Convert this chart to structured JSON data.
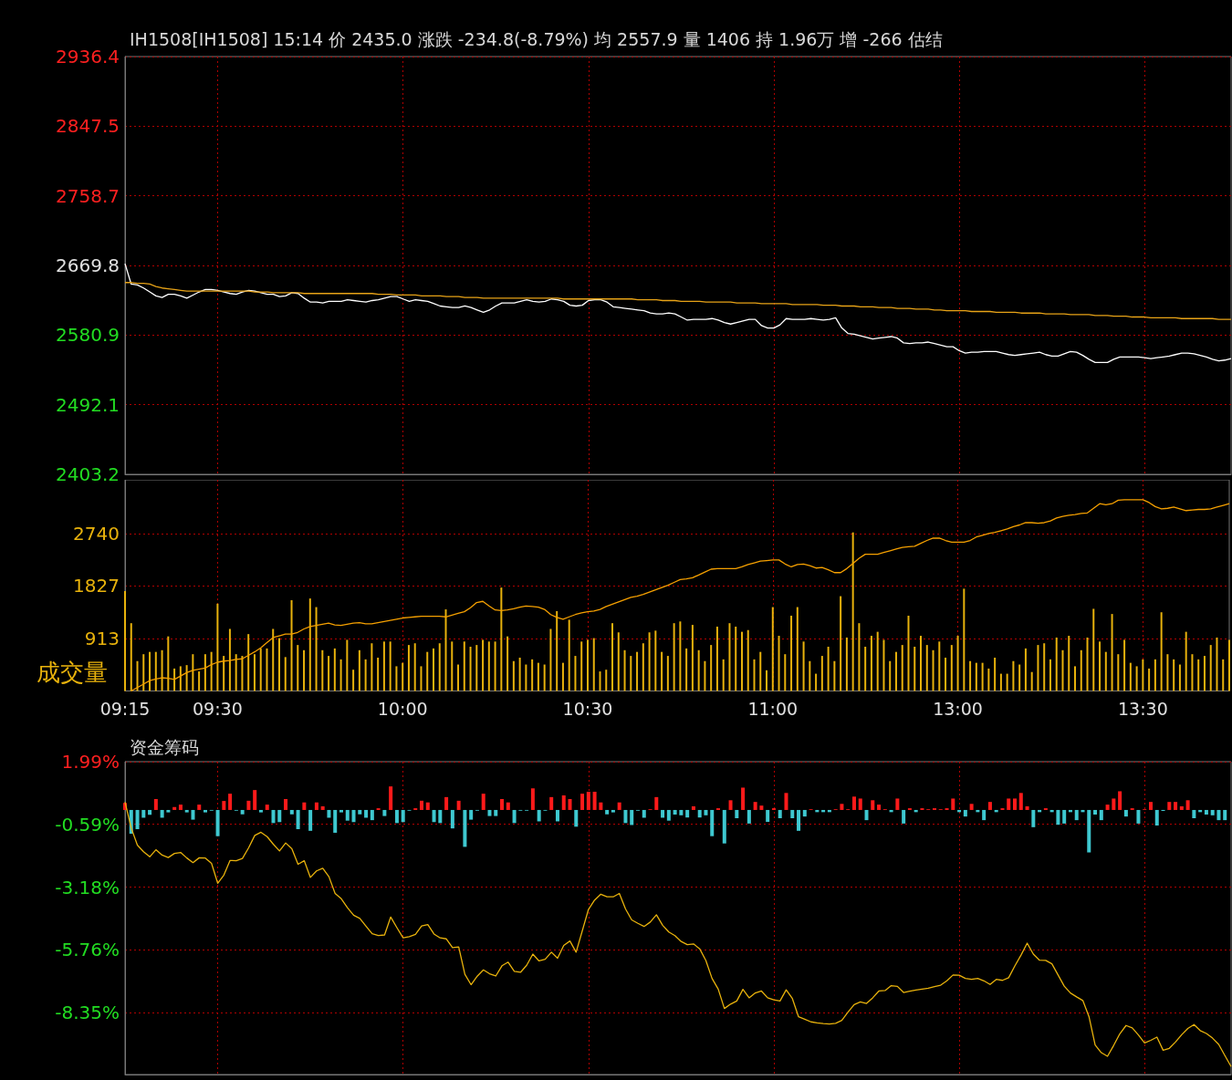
{
  "chart_data": [
    {
      "type": "line",
      "title": "IH1508[IH1508] 15:14 价 2435.0 涨跌 -234.8(-8.79%) 均 2557.9 量 1406 持 1.96万 增 -266 估结",
      "categories": [
        null,
        null,
        null,
        null,
        null,
        null,
        null,
        null,
        null,
        null,
        null,
        null,
        null,
        null,
        null,
        null,
        null,
        null,
        null,
        null,
        null,
        null,
        null,
        null,
        null,
        null,
        null,
        null,
        null,
        null,
        null,
        null,
        null,
        null,
        null,
        null,
        null,
        null,
        null,
        null,
        null,
        null,
        null,
        null,
        null,
        null,
        null,
        null,
        null,
        null,
        null,
        null,
        null,
        null,
        null,
        null,
        null,
        null,
        null,
        null,
        null,
        null,
        null,
        null,
        null,
        null,
        null,
        null,
        null,
        null,
        null,
        null,
        null,
        null,
        null,
        null,
        null,
        null,
        null,
        null,
        null,
        null,
        null,
        null,
        null,
        null,
        null,
        null,
        null,
        null,
        null,
        null,
        null,
        null,
        null,
        null,
        null,
        null,
        null,
        null,
        null,
        null,
        null,
        null,
        null,
        null,
        null,
        null,
        null,
        null,
        null,
        null,
        null,
        null,
        null,
        null,
        null,
        null,
        null,
        null,
        null,
        null,
        null,
        null,
        null,
        null,
        null,
        null,
        null,
        null,
        null,
        null,
        null,
        null,
        null,
        null,
        null,
        null,
        null,
        null,
        null,
        null,
        null,
        null,
        null,
        null,
        null,
        null,
        null,
        null,
        null,
        null,
        null,
        null,
        null,
        null,
        null,
        null,
        null,
        null,
        null,
        null,
        null,
        null,
        null,
        null,
        null,
        null,
        null,
        null,
        null,
        null,
        null,
        null,
        null,
        null,
        null,
        null,
        null,
        null
      ],
      "ylim": [
        2403.2,
        2936.4
      ],
      "yticks": [
        2403.2,
        2492.1,
        2580.9,
        2669.8,
        2758.7,
        2847.5,
        2936.4
      ],
      "grid": true,
      "tick_labels": "y",
      "series": [
        {
          "color": "#ffffff",
          "values": [
            2672,
            2646,
            2645,
            2641,
            2636,
            2631,
            2629,
            2633,
            2633,
            2631,
            2628,
            2632,
            2636,
            2639,
            2639,
            2638,
            2636,
            2634,
            2633,
            2636,
            2638,
            2637,
            2635,
            2633,
            2633,
            2630,
            2631,
            2635,
            2634,
            2628,
            2623,
            2623,
            2622,
            2624,
            2624,
            2624,
            2626,
            2625,
            2624,
            2623,
            2625,
            2626,
            2628,
            2630,
            2630,
            2627,
            2624,
            2626,
            2625,
            2624,
            2621,
            2618,
            2617,
            2616,
            2616,
            2618,
            2616,
            2613,
            2610,
            2613,
            2618,
            2622,
            2622,
            2622,
            2624,
            2626,
            2624,
            2623,
            2624,
            2627,
            2626,
            2624,
            2619,
            2618,
            2619,
            2625,
            2626,
            2626,
            2623,
            2617,
            2616,
            2615,
            2614,
            2613,
            2612,
            2609,
            2608,
            2608,
            2609,
            2608,
            2604,
            2600,
            2601,
            2601,
            2601,
            2602,
            2600,
            2597,
            2595,
            2597,
            2599,
            2601,
            2601,
            2593,
            2590,
            2590,
            2594,
            2602,
            2601,
            2601,
            2601,
            2602,
            2601,
            2600,
            2601,
            2603,
            2590,
            2583,
            2582,
            2580,
            2578,
            2576,
            2577,
            2578,
            2579,
            2577,
            2571,
            2570,
            2571,
            2571,
            2572,
            2570,
            2568,
            2566,
            2566,
            2561,
            2558,
            2559,
            2559,
            2560,
            2560,
            2560,
            2558,
            2556,
            2555,
            2556,
            2557,
            2558,
            2559,
            2556,
            2554,
            2554,
            2557,
            2560,
            2559,
            2555,
            2550,
            2546,
            2546,
            2546,
            2550,
            2553,
            2553,
            2553,
            2553,
            2552,
            2551,
            2552,
            2553,
            2554,
            2556,
            2558,
            2558,
            2557,
            2555,
            2553,
            2550,
            2548,
            2549,
            2551
          ]
        },
        {
          "color": "#e8a317",
          "values": [
            2648,
            2648,
            2647,
            2647,
            2646,
            2643,
            2641,
            2640,
            2639,
            2638,
            2637,
            2637,
            2637,
            2637,
            2637,
            2637,
            2637,
            2637,
            2637,
            2637,
            2637,
            2636,
            2636,
            2636,
            2635,
            2635,
            2635,
            2635,
            2635,
            2634,
            2634,
            2634,
            2634,
            2634,
            2634,
            2634,
            2634,
            2634,
            2634,
            2634,
            2634,
            2633,
            2633,
            2633,
            2632,
            2632,
            2632,
            2632,
            2631,
            2631,
            2631,
            2631,
            2630,
            2630,
            2630,
            2629,
            2629,
            2629,
            2628,
            2628,
            2628,
            2628,
            2628,
            2628,
            2628,
            2628,
            2628,
            2628,
            2628,
            2628,
            2628,
            2627,
            2627,
            2627,
            2627,
            2627,
            2627,
            2627,
            2627,
            2627,
            2627,
            2627,
            2627,
            2626,
            2626,
            2626,
            2626,
            2625,
            2625,
            2625,
            2624,
            2624,
            2624,
            2624,
            2623,
            2623,
            2623,
            2623,
            2623,
            2622,
            2622,
            2622,
            2622,
            2621,
            2621,
            2621,
            2621,
            2621,
            2620,
            2620,
            2620,
            2620,
            2620,
            2619,
            2619,
            2619,
            2618,
            2618,
            2618,
            2617,
            2617,
            2617,
            2616,
            2616,
            2616,
            2615,
            2615,
            2615,
            2614,
            2614,
            2614,
            2613,
            2613,
            2612,
            2612,
            2612,
            2612,
            2611,
            2611,
            2611,
            2611,
            2610,
            2610,
            2610,
            2610,
            2609,
            2609,
            2609,
            2609,
            2608,
            2608,
            2608,
            2608,
            2607,
            2607,
            2607,
            2607,
            2606,
            2606,
            2606,
            2605,
            2605,
            2605,
            2604,
            2604,
            2604,
            2603,
            2603,
            2603,
            2603,
            2603,
            2602,
            2602,
            2602,
            2602,
            2602,
            2602,
            2601,
            2601,
            2601
          ]
        }
      ]
    },
    {
      "type": "bar",
      "ylabel": "成交量",
      "categories": [
        "09:15",
        null,
        null,
        null,
        null,
        null,
        null,
        null,
        null,
        null,
        null,
        null,
        null,
        null,
        null,
        "09:30",
        null,
        null,
        null,
        null,
        null,
        null,
        null,
        null,
        null,
        null,
        null,
        null,
        null,
        null,
        null,
        null,
        null,
        null,
        null,
        null,
        null,
        null,
        null,
        null,
        null,
        null,
        null,
        null,
        null,
        "10:00",
        null,
        null,
        null,
        null,
        null,
        null,
        null,
        null,
        null,
        null,
        null,
        null,
        null,
        null,
        null,
        null,
        null,
        null,
        null,
        null,
        null,
        null,
        null,
        null,
        null,
        null,
        null,
        null,
        null,
        "10:30",
        null,
        null,
        null,
        null,
        null,
        null,
        null,
        null,
        null,
        null,
        null,
        null,
        null,
        null,
        null,
        null,
        null,
        null,
        null,
        null,
        null,
        null,
        null,
        null,
        null,
        null,
        null,
        null,
        null,
        "11:00",
        null,
        null,
        null,
        null,
        null,
        null,
        null,
        null,
        null,
        null,
        null,
        null,
        null,
        null,
        null,
        null,
        null,
        null,
        null,
        null,
        null,
        null,
        null,
        null,
        null,
        null,
        null,
        null,
        null,
        "13:00",
        null,
        null,
        null,
        null,
        null,
        null,
        null,
        null,
        null,
        null,
        null,
        null,
        null,
        null,
        null,
        null,
        null,
        null,
        null,
        null,
        null,
        null,
        null,
        null,
        null,
        null,
        null,
        null,
        null,
        "13:30",
        null,
        null,
        null,
        null,
        null,
        null,
        null,
        null,
        null,
        null,
        null,
        null,
        null,
        null
      ],
      "ylim": [
        0,
        3676
      ],
      "yticks": [
        913,
        1827,
        2740
      ],
      "grid": true,
      "series": [
        {
          "color": "#e8b20c",
          "values": [
            1740,
            1180,
            520,
            640,
            680,
            680,
            710,
            950,
            390,
            430,
            450,
            640,
            340,
            640,
            680,
            1520,
            610,
            1080,
            640,
            610,
            990,
            640,
            740,
            740,
            1080,
            920,
            590,
            1580,
            800,
            710,
            1610,
            1460,
            710,
            610,
            740,
            550,
            890,
            370,
            710,
            550,
            830,
            580,
            860,
            860,
            430,
            490,
            800,
            830,
            430,
            680,
            740,
            830,
            1420,
            860,
            460,
            860,
            770,
            800,
            890,
            860,
            860,
            1800,
            950,
            520,
            580,
            460,
            550,
            490,
            460,
            1080,
            1390,
            490,
            1240,
            610,
            860,
            890,
            920,
            340,
            370,
            1180,
            1020,
            710,
            610,
            680,
            830,
            1020,
            1050,
            680,
            610,
            1180,
            1210,
            740,
            1150,
            710,
            520,
            800,
            1120,
            550,
            1180,
            1120,
            1030,
            1060,
            550,
            680,
            360,
            1460,
            960,
            640,
            1310,
            1460,
            860,
            520,
            300,
            610,
            770,
            520,
            1650,
            930,
            2760,
            1180,
            770,
            960,
            1030,
            890,
            520,
            680,
            800,
            1310,
            770,
            960,
            800,
            710,
            860,
            580,
            800,
            960,
            1780,
            520,
            490,
            490,
            390,
            580,
            300,
            300,
            520,
            460,
            740,
            330,
            800,
            830,
            550,
            930,
            710,
            960,
            430,
            710,
            930,
            1430,
            860,
            680,
            1340,
            640,
            890,
            490,
            430,
            550,
            390,
            550,
            1370,
            640,
            550,
            460,
            1030,
            640,
            550,
            610,
            800,
            930,
            550,
            890
          ]
        },
        {
          "type": "line",
          "color": "#f5a000",
          "values": [
            null,
            0,
            60,
            120,
            180,
            210,
            230,
            220,
            200,
            260,
            320,
            360,
            380,
            400,
            460,
            500,
            520,
            530,
            550,
            560,
            620,
            680,
            750,
            840,
            930,
            960,
            990,
            990,
            1020,
            1080,
            1120,
            1140,
            1160,
            1180,
            1150,
            1140,
            1160,
            1180,
            1190,
            1170,
            1170,
            1190,
            1210,
            1230,
            1250,
            1270,
            1280,
            1290,
            1300,
            1300,
            1300,
            1300,
            1290,
            1320,
            1350,
            1380,
            1450,
            1540,
            1560,
            1480,
            1410,
            1400,
            1410,
            1430,
            1460,
            1480,
            1470,
            1460,
            1420,
            1330,
            1280,
            1250,
            1290,
            1330,
            1360,
            1380,
            1390,
            1420,
            1470,
            1510,
            1550,
            1590,
            1630,
            1650,
            1680,
            1720,
            1760,
            1800,
            1840,
            1890,
            1940,
            1950,
            1970,
            2020,
            2070,
            2120,
            2130,
            2130,
            2130,
            2130,
            2160,
            2200,
            2230,
            2260,
            2270,
            2280,
            2280,
            2210,
            2160,
            2200,
            2210,
            2180,
            2140,
            2150,
            2110,
            2060,
            2060,
            2130,
            2220,
            2310,
            2380,
            2380,
            2380,
            2410,
            2440,
            2470,
            2500,
            2510,
            2520,
            2570,
            2620,
            2660,
            2660,
            2620,
            2590,
            2590,
            2590,
            2620,
            2680,
            2710,
            2740,
            2760,
            2790,
            2820,
            2860,
            2890,
            2930,
            2930,
            2920,
            2930,
            2960,
            3010,
            3040,
            3060,
            3070,
            3090,
            3100,
            3180,
            3260,
            3240,
            3260,
            3320,
            3330,
            3330,
            3330,
            3330,
            3280,
            3210,
            3170,
            3180,
            3200,
            3170,
            3140,
            3150,
            3160,
            3160,
            3170,
            3200,
            3230,
            3260
          ]
        }
      ]
    },
    {
      "type": "bar",
      "title": "资金筹码",
      "categories": [
        null,
        null,
        null,
        null,
        null,
        null,
        null,
        null,
        null,
        null,
        null,
        null,
        null,
        null,
        null,
        null,
        null,
        null,
        null,
        null,
        null,
        null,
        null,
        null,
        null,
        null,
        null,
        null,
        null,
        null,
        null,
        null,
        null,
        null,
        null,
        null,
        null,
        null,
        null,
        null,
        null,
        null,
        null,
        null,
        null,
        null,
        null,
        null,
        null,
        null,
        null,
        null,
        null,
        null,
        null,
        null,
        null,
        null,
        null,
        null,
        null,
        null,
        null,
        null,
        null,
        null,
        null,
        null,
        null,
        null,
        null,
        null,
        null,
        null,
        null,
        null,
        null,
        null,
        null,
        null,
        null,
        null,
        null,
        null,
        null,
        null,
        null,
        null,
        null,
        null,
        null,
        null,
        null,
        null,
        null,
        null,
        null,
        null,
        null,
        null,
        null,
        null,
        null,
        null,
        null,
        null,
        null,
        null,
        null,
        null,
        null,
        null,
        null,
        null,
        null,
        null,
        null,
        null,
        null,
        null,
        null,
        null,
        null,
        null,
        null,
        null,
        null,
        null,
        null,
        null,
        null,
        null,
        null,
        null,
        null,
        null,
        null,
        null,
        null,
        null,
        null,
        null,
        null,
        null,
        null,
        null,
        null,
        null,
        null,
        null,
        null,
        null,
        null,
        null,
        null,
        null,
        null,
        null,
        null,
        null,
        null,
        null,
        null,
        null,
        null,
        null,
        null,
        null,
        null,
        null,
        null,
        null,
        null,
        null,
        null,
        null,
        null,
        null,
        null,
        null
      ],
      "ylim": [
        -10.9,
        1.99
      ],
      "yticks": [
        {
          "value": 1.99,
          "label": "1.99%"
        },
        {
          "value": -0.59,
          "label": "-0.59%"
        },
        {
          "value": -3.18,
          "label": "-3.18%"
        },
        {
          "value": -5.76,
          "label": "-5.76%"
        },
        {
          "value": -8.35,
          "label": "-8.35%"
        }
      ],
      "grid": true,
      "tick_labels": "y",
      "series": [
        {
          "color": "#ff1a1a",
          "values": [
            0.29,
            null,
            null,
            null,
            null,
            0.45,
            null,
            null,
            0.12,
            0.22,
            null,
            null,
            0.22,
            null,
            null,
            null,
            0.37,
            0.67,
            null,
            null,
            0.38,
            0.82,
            null,
            0.22,
            null,
            null,
            0.45,
            null,
            null,
            0.31,
            null,
            0.31,
            0.15,
            null,
            null,
            null,
            null,
            null,
            null,
            null,
            null,
            0.07,
            null,
            0.97,
            null,
            null,
            null,
            0.07,
            0.38,
            0.31,
            null,
            null,
            0.53,
            null,
            0.38,
            null,
            null,
            null,
            0.67,
            null,
            null,
            0.45,
            0.31,
            null,
            null,
            null,
            0.89,
            null,
            null,
            0.53,
            null,
            0.6,
            0.45,
            null,
            0.67,
            0.75,
            0.75,
            0.31,
            null,
            null,
            0.31,
            null,
            null,
            null,
            null,
            0.03,
            0.53,
            null,
            null,
            null,
            null,
            null,
            0.15,
            null,
            null,
            null,
            0.07,
            null,
            0.4,
            null,
            0.92,
            null,
            0.33,
            0.18,
            null,
            0.07,
            null,
            0.7,
            null,
            null,
            null,
            0.03,
            null,
            null,
            null,
            0.03,
            0.25,
            0.03,
            0.55,
            0.47,
            null,
            0.4,
            0.22,
            0.03,
            null,
            0.47,
            null,
            0.07,
            null,
            0.07,
            0.03,
            0.07,
            0.03,
            0.07,
            0.47,
            null,
            null,
            0.25,
            null,
            null,
            0.33,
            null,
            0.07,
            0.47,
            0.47,
            0.7,
            0.15,
            null,
            null,
            0.07,
            null,
            null,
            null,
            null,
            null,
            null,
            null,
            null,
            null,
            0.22,
            0.47,
            0.77,
            null,
            0.07,
            null,
            0.03,
            0.33,
            null,
            null,
            0.33,
            0.33,
            0.15,
            0.4,
            null,
            null,
            null,
            null,
            null,
            null,
            null
          ]
        },
        {
          "color": "#3ec8d0",
          "values": [
            null,
            -0.98,
            -0.79,
            -0.32,
            -0.2,
            null,
            -0.32,
            -0.1,
            null,
            null,
            -0.1,
            -0.4,
            null,
            -0.1,
            -0.03,
            -1.08,
            null,
            null,
            -0.03,
            -0.18,
            null,
            null,
            -0.1,
            null,
            -0.54,
            -0.5,
            null,
            -0.18,
            -0.79,
            null,
            -0.86,
            null,
            null,
            -0.32,
            -0.94,
            -0.1,
            -0.44,
            -0.5,
            -0.18,
            -0.32,
            -0.42,
            null,
            -0.25,
            null,
            -0.54,
            -0.5,
            -0.03,
            null,
            null,
            null,
            -0.5,
            -0.54,
            null,
            -0.76,
            null,
            -1.52,
            -0.4,
            -0.03,
            null,
            -0.25,
            -0.25,
            null,
            null,
            -0.54,
            -0.03,
            -0.03,
            null,
            -0.47,
            -0.03,
            null,
            -0.47,
            null,
            null,
            -0.69,
            null,
            null,
            null,
            null,
            -0.18,
            -0.1,
            null,
            -0.54,
            -0.62,
            -0.03,
            -0.32,
            null,
            null,
            -0.32,
            -0.44,
            -0.19,
            -0.22,
            -0.31,
            null,
            -0.31,
            -0.22,
            -1.08,
            null,
            -1.38,
            null,
            -0.34,
            null,
            -0.56,
            null,
            null,
            -0.49,
            null,
            -0.34,
            null,
            -0.34,
            -0.86,
            -0.27,
            null,
            -0.09,
            -0.09,
            -0.09,
            null,
            null,
            null,
            null,
            null,
            -0.42,
            null,
            null,
            null,
            -0.09,
            null,
            -0.56,
            null,
            -0.09,
            null,
            null,
            null,
            null,
            null,
            null,
            -0.09,
            -0.27,
            null,
            -0.09,
            -0.42,
            null,
            -0.09,
            null,
            null,
            null,
            null,
            null,
            -0.71,
            -0.09,
            null,
            -0.09,
            -0.61,
            -0.56,
            -0.09,
            -0.42,
            -0.09,
            -1.75,
            -0.19,
            -0.42,
            null,
            null,
            null,
            -0.27,
            null,
            -0.56,
            null,
            null,
            -0.64,
            -0.04,
            null,
            null,
            null,
            null,
            -0.34,
            -0.09,
            -0.19,
            -0.22,
            -0.42,
            -0.42,
            null
          ]
        },
        {
          "type": "line",
          "color": "#e8b20c",
          "values": [
            0.32,
            -0.74,
            -1.45,
            -1.72,
            -1.93,
            -1.64,
            -1.86,
            -1.96,
            -1.79,
            -1.75,
            -1.98,
            -2.17,
            -1.97,
            -1.98,
            -2.2,
            -3.02,
            -2.68,
            -2.08,
            -2.09,
            -2.0,
            -1.56,
            -1.05,
            -0.92,
            -1.1,
            -1.41,
            -1.69,
            -1.36,
            -1.6,
            -2.24,
            -2.09,
            -2.78,
            -2.51,
            -2.4,
            -2.75,
            -3.44,
            -3.66,
            -4.03,
            -4.34,
            -4.47,
            -4.79,
            -5.1,
            -5.17,
            -5.15,
            -4.41,
            -4.85,
            -5.27,
            -5.22,
            -5.13,
            -4.78,
            -4.72,
            -5.11,
            -5.27,
            -5.31,
            -5.67,
            -5.64,
            -6.77,
            -7.2,
            -6.85,
            -6.59,
            -6.75,
            -6.84,
            -6.42,
            -6.27,
            -6.65,
            -6.69,
            -6.4,
            -5.94,
            -6.22,
            -6.15,
            -5.86,
            -6.11,
            -5.58,
            -5.4,
            -5.86,
            -4.98,
            -4.1,
            -3.71,
            -3.47,
            -3.58,
            -3.58,
            -3.44,
            -4.08,
            -4.53,
            -4.67,
            -4.8,
            -4.62,
            -4.32,
            -4.75,
            -5.03,
            -5.18,
            -5.42,
            -5.55,
            -5.52,
            -5.72,
            -6.2,
            -6.94,
            -7.38,
            -8.18,
            -8.0,
            -7.87,
            -7.39,
            -7.74,
            -7.54,
            -7.46,
            -7.74,
            -7.82,
            -7.87,
            -7.41,
            -7.77,
            -8.52,
            -8.62,
            -8.73,
            -8.77,
            -8.8,
            -8.82,
            -8.79,
            -8.67,
            -8.33,
            -8.02,
            -7.91,
            -7.97,
            -7.74,
            -7.46,
            -7.44,
            -7.24,
            -7.27,
            -7.52,
            -7.47,
            -7.42,
            -7.38,
            -7.34,
            -7.28,
            -7.22,
            -7.04,
            -6.8,
            -6.81,
            -6.94,
            -6.98,
            -6.94,
            -7.04,
            -7.19,
            -6.98,
            -7.02,
            -6.91,
            -6.43,
            -5.98,
            -5.49,
            -5.94,
            -6.19,
            -6.2,
            -6.34,
            -6.8,
            -7.26,
            -7.54,
            -7.7,
            -7.85,
            -8.51,
            -9.68,
            -10.0,
            -10.15,
            -9.7,
            -9.22,
            -8.88,
            -8.98,
            -9.27,
            -9.6,
            -9.49,
            -9.36,
            -9.9,
            -9.82,
            -9.56,
            -9.26,
            -9.0,
            -8.84,
            -9.09,
            -9.21,
            -9.4,
            -9.66,
            -10.12,
            -10.57
          ]
        }
      ]
    }
  ]
}
